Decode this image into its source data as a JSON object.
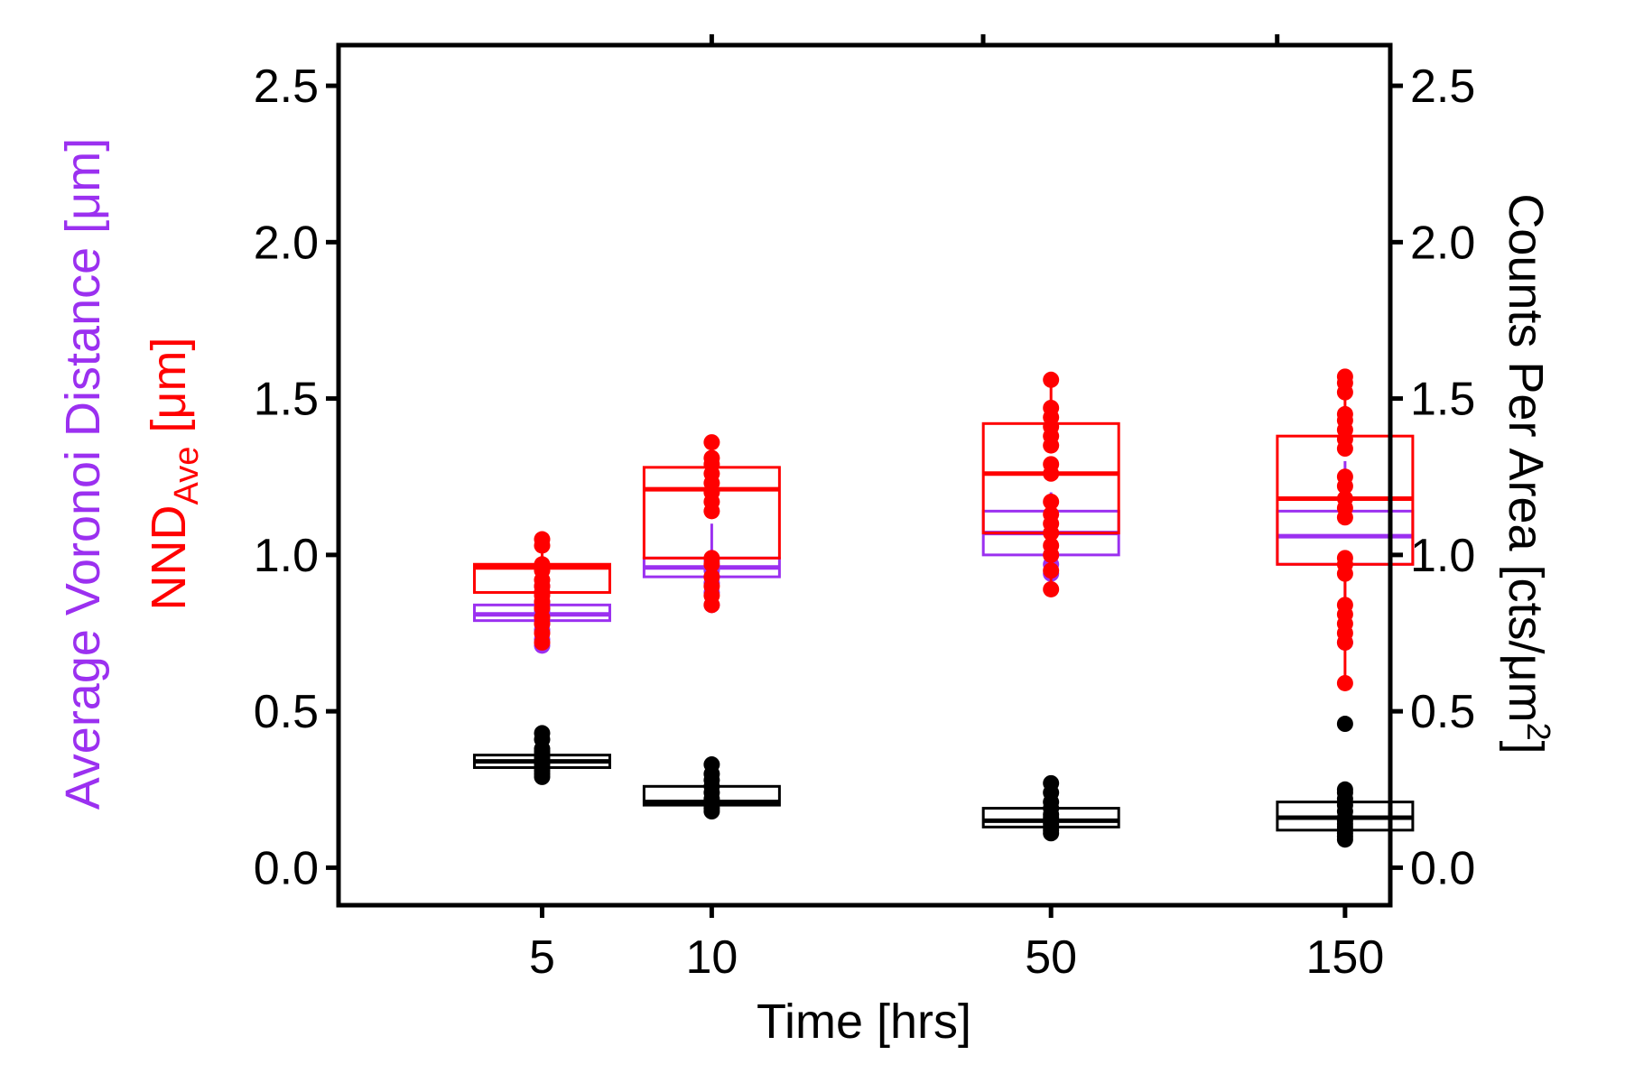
{
  "chart_data": {
    "type": "box",
    "xlabel": "Time [hrs]",
    "ylabel_left_purple": "Average Voronoi Distance [μm]",
    "ylabel_left_red_main": "NND",
    "ylabel_left_red_sub": "Ave",
    "ylabel_left_red_unit": " [μm]",
    "ylabel_right_main": "Counts Per Area [cts/μm",
    "ylabel_right_sup": "2",
    "ylabel_right_end": "]",
    "ylim": [
      -0.12,
      2.63
    ],
    "yticks": [
      0.0,
      0.5,
      1.0,
      1.5,
      2.0,
      2.5
    ],
    "ytick_labels": [
      "0.0",
      "0.5",
      "1.0",
      "1.5",
      "2.0",
      "2.5"
    ],
    "xlim": [
      -0.9,
      8.4
    ],
    "xtick_positions": [
      0.9,
      2.4,
      5.4,
      8.0
    ],
    "xticks": [
      "5",
      "10",
      "50",
      "150"
    ],
    "top_tick_positions": [
      2.4,
      4.8,
      7.4
    ],
    "colors": {
      "voronoi": "#9b30f0",
      "nnd": "#ff0000",
      "counts": "#000000"
    },
    "series": [
      {
        "name": "Average Voronoi Distance",
        "color": "#9b30f0",
        "boxes": [
          {
            "x": 0.9,
            "q1": 0.79,
            "median": 0.81,
            "q3": 0.84,
            "whisker_low": 0.71,
            "whisker_high": 0.97,
            "points": [
              0.71,
              0.73,
              0.76,
              0.78,
              0.8,
              0.81,
              0.82,
              0.83,
              0.85,
              0.88,
              0.9
            ]
          },
          {
            "x": 2.4,
            "q1": 0.93,
            "median": 0.96,
            "q3": 0.99,
            "whisker_low": 0.84,
            "whisker_high": 1.1,
            "points": [
              0.84,
              0.88,
              0.91,
              0.93,
              0.95,
              0.96,
              0.98
            ]
          },
          {
            "x": 5.4,
            "q1": 1.0,
            "median": 1.07,
            "q3": 1.14,
            "whisker_low": 0.94,
            "whisker_high": 1.2,
            "points": [
              0.94,
              0.97,
              1.0
            ]
          },
          {
            "x": 8.0,
            "q1": 0.97,
            "median": 1.06,
            "q3": 1.14,
            "whisker_low": 0.72,
            "whisker_high": 1.3,
            "points": [
              0.72
            ]
          }
        ]
      },
      {
        "name": "NND Ave",
        "color": "#ff0000",
        "boxes": [
          {
            "x": 0.9,
            "q1": 0.88,
            "median": 0.96,
            "q3": 0.97,
            "whisker_low": 0.72,
            "whisker_high": 1.05,
            "points": [
              0.72,
              0.75,
              0.78,
              0.8,
              0.83,
              0.85,
              0.87,
              0.88,
              0.9,
              0.92,
              0.95,
              0.97,
              1.03,
              1.05
            ]
          },
          {
            "x": 2.4,
            "q1": 0.99,
            "median": 1.21,
            "q3": 1.28,
            "whisker_low": 0.84,
            "whisker_high": 1.36,
            "points": [
              0.84,
              0.87,
              0.9,
              0.93,
              0.97,
              0.99,
              1.14,
              1.17,
              1.2,
              1.23,
              1.26,
              1.29,
              1.31,
              1.36
            ]
          },
          {
            "x": 5.4,
            "q1": 1.07,
            "median": 1.26,
            "q3": 1.42,
            "whisker_low": 0.89,
            "whisker_high": 1.56,
            "points": [
              0.89,
              0.95,
              1.0,
              1.03,
              1.07,
              1.1,
              1.13,
              1.17,
              1.26,
              1.29,
              1.35,
              1.38,
              1.41,
              1.44,
              1.47,
              1.56
            ]
          },
          {
            "x": 8.0,
            "q1": 0.97,
            "median": 1.18,
            "q3": 1.38,
            "whisker_low": 0.59,
            "whisker_high": 1.57,
            "points": [
              0.59,
              0.72,
              0.75,
              0.78,
              0.81,
              0.84,
              0.94,
              0.97,
              0.99,
              1.12,
              1.15,
              1.18,
              1.22,
              1.25,
              1.34,
              1.37,
              1.4,
              1.43,
              1.45,
              1.52,
              1.55,
              1.57
            ]
          }
        ]
      },
      {
        "name": "Counts Per Area",
        "color": "#000000",
        "boxes": [
          {
            "x": 0.9,
            "q1": 0.32,
            "median": 0.34,
            "q3": 0.36,
            "whisker_low": 0.29,
            "whisker_high": 0.38,
            "points": [
              0.29,
              0.3,
              0.31,
              0.32,
              0.33,
              0.34,
              0.35,
              0.36,
              0.37,
              0.38,
              0.41,
              0.43
            ]
          },
          {
            "x": 2.4,
            "q1": 0.2,
            "median": 0.21,
            "q3": 0.26,
            "whisker_low": 0.18,
            "whisker_high": 0.33,
            "points": [
              0.18,
              0.19,
              0.2,
              0.21,
              0.22,
              0.24,
              0.26,
              0.28,
              0.3,
              0.33
            ]
          },
          {
            "x": 5.4,
            "q1": 0.13,
            "median": 0.15,
            "q3": 0.19,
            "whisker_low": 0.11,
            "whisker_high": 0.24,
            "points": [
              0.11,
              0.12,
              0.13,
              0.14,
              0.15,
              0.16,
              0.17,
              0.19,
              0.21,
              0.24,
              0.27
            ]
          },
          {
            "x": 8.0,
            "q1": 0.12,
            "median": 0.16,
            "q3": 0.21,
            "whisker_low": 0.09,
            "whisker_high": 0.25,
            "points": [
              0.09,
              0.1,
              0.11,
              0.12,
              0.13,
              0.14,
              0.15,
              0.16,
              0.18,
              0.2,
              0.22,
              0.24,
              0.25,
              0.46
            ]
          }
        ]
      }
    ]
  }
}
